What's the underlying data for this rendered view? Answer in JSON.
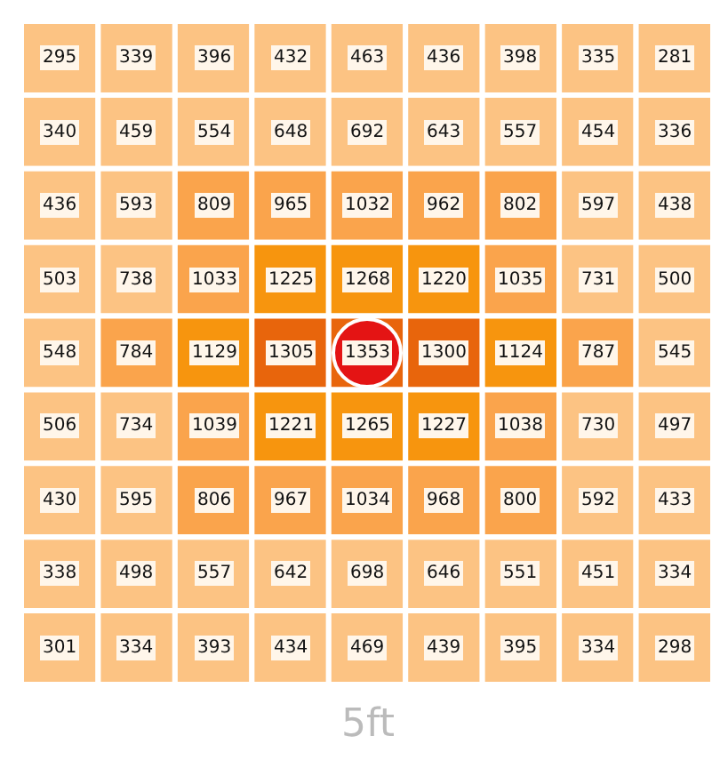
{
  "chart_data": {
    "type": "heatmap",
    "categories": [
      null,
      null,
      null,
      null,
      null,
      null,
      null,
      null,
      null
    ],
    "y_categories": [
      null,
      null,
      null,
      null,
      null,
      null,
      null,
      null,
      null
    ],
    "cells": [
      [
        295,
        339,
        396,
        432,
        463,
        436,
        398,
        335,
        281
      ],
      [
        340,
        459,
        554,
        648,
        692,
        643,
        557,
        454,
        336
      ],
      [
        436,
        593,
        809,
        965,
        1032,
        962,
        802,
        597,
        438
      ],
      [
        503,
        738,
        1033,
        1225,
        1268,
        1220,
        1035,
        731,
        500
      ],
      [
        548,
        784,
        1129,
        1305,
        1353,
        1300,
        1124,
        787,
        545
      ],
      [
        506,
        734,
        1039,
        1221,
        1265,
        1227,
        1038,
        730,
        497
      ],
      [
        430,
        595,
        806,
        967,
        1034,
        968,
        800,
        592,
        433
      ],
      [
        338,
        498,
        557,
        642,
        698,
        646,
        551,
        451,
        334
      ],
      [
        301,
        334,
        393,
        434,
        469,
        439,
        395,
        334,
        298
      ]
    ],
    "data_labels": true,
    "annotations": [
      "5ft"
    ]
  }
}
